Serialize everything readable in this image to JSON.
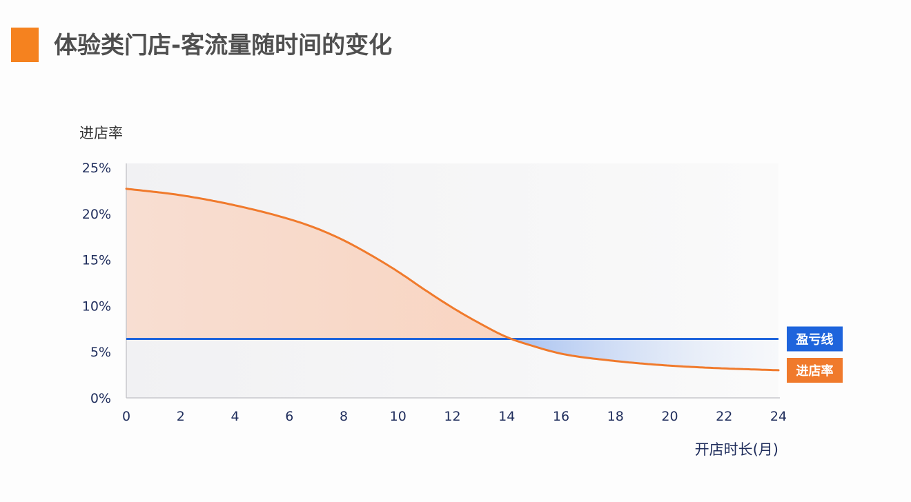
{
  "header": {
    "title": "体验类门店-客流量随时间的变化",
    "accent_color": "#f5821f"
  },
  "chart_data": {
    "type": "line",
    "title": "体验类门店-客流量随时间的变化",
    "xlabel": "开店时长(月)",
    "ylabel": "进店率",
    "xlim": [
      0,
      24
    ],
    "ylim": [
      0,
      25
    ],
    "x_ticks": [
      0,
      2,
      4,
      6,
      8,
      10,
      12,
      14,
      16,
      18,
      20,
      22,
      24
    ],
    "y_ticks": [
      0,
      5,
      10,
      15,
      20,
      25
    ],
    "y_tick_labels": [
      "0%",
      "5%",
      "10%",
      "15%",
      "20%",
      "25%"
    ],
    "grid": false,
    "series": [
      {
        "name": "进店率",
        "color": "#f07a2c",
        "x": [
          0,
          2,
          4,
          6,
          7,
          8,
          9,
          10,
          11,
          12,
          13,
          14,
          15,
          16,
          18,
          20,
          22,
          24
        ],
        "y": [
          22.7,
          22.0,
          20.9,
          19.4,
          18.4,
          17.1,
          15.5,
          13.7,
          11.7,
          9.8,
          8.1,
          6.6,
          5.6,
          4.8,
          4.0,
          3.5,
          3.2,
          3.0
        ]
      },
      {
        "name": "盈亏线",
        "color": "#1e64dc",
        "x": [
          0,
          24
        ],
        "y": [
          6.4,
          6.4
        ]
      }
    ]
  }
}
